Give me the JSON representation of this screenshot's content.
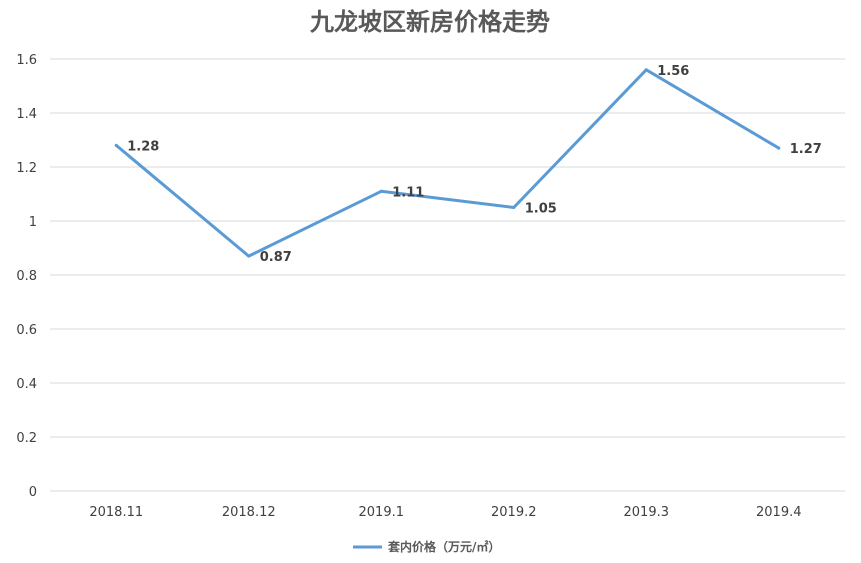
{
  "chart_data": {
    "type": "line",
    "title": "九龙坡区新房价格走势",
    "categories": [
      "2018.11",
      "2018.12",
      "2019.1",
      "2019.2",
      "2019.3",
      "2019.4"
    ],
    "series": [
      {
        "name": "套内价格（万元/㎡）",
        "values": [
          1.28,
          0.87,
          1.11,
          1.05,
          1.56,
          1.27
        ],
        "color": "#5b9bd5"
      }
    ],
    "ylim": [
      0,
      1.6
    ],
    "yticks": [
      "0",
      "0.2",
      "0.4",
      "0.6",
      "0.8",
      "1",
      "1.2",
      "1.4",
      "1.6"
    ],
    "data_labels": [
      "1.28",
      "0.87",
      "1.11",
      "1.05",
      "1.56",
      "1.27"
    ],
    "grid": true,
    "legend_position": "bottom"
  }
}
